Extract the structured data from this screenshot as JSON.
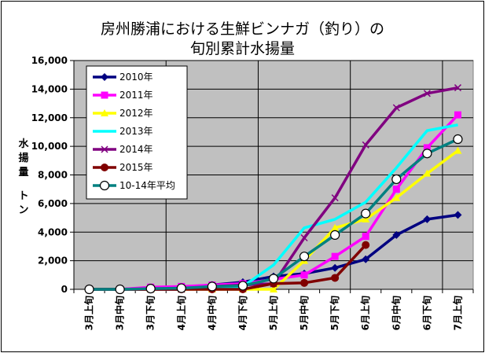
{
  "chart_data": {
    "type": "line",
    "title_line1": "房州勝浦における生鮮ビンナガ（釣り）の",
    "title_line2": "旬別累計水揚量",
    "ylabel_chars": [
      "水",
      "揚",
      "量",
      "ト",
      "ン"
    ],
    "ylim": [
      0,
      16000
    ],
    "yticks": [
      "0",
      "2,000",
      "4,000",
      "6,000",
      "8,000",
      "10,000",
      "12,000",
      "14,000",
      "16,000"
    ],
    "categories": [
      "3月上旬",
      "3月中旬",
      "3月下旬",
      "4月上旬",
      "4月中旬",
      "4月下旬",
      "5月上旬",
      "5月中旬",
      "5月下旬",
      "6月上旬",
      "6月中旬",
      "6月下旬",
      "7月上旬"
    ],
    "grid": true,
    "legend_position": "top-left",
    "series": [
      {
        "name": "2010年",
        "color": "#000080",
        "marker": "diamond",
        "values": [
          0,
          0,
          100,
          150,
          300,
          500,
          900,
          1100,
          1500,
          2100,
          3800,
          4900,
          5200
        ]
      },
      {
        "name": "2011年",
        "color": "#ff00ff",
        "marker": "square",
        "values": [
          0,
          0,
          150,
          200,
          300,
          400,
          700,
          1000,
          2300,
          3700,
          7000,
          9900,
          12200
        ]
      },
      {
        "name": "2012年",
        "color": "#ffff00",
        "marker": "triangle",
        "values": [
          0,
          0,
          0,
          0,
          0,
          0,
          0,
          2000,
          4300,
          4900,
          6400,
          8100,
          9700
        ]
      },
      {
        "name": "2013年",
        "color": "#00ffff",
        "marker": "none",
        "values": [
          0,
          0,
          0,
          0,
          100,
          200,
          1700,
          4300,
          4900,
          6100,
          8500,
          11100,
          11500
        ]
      },
      {
        "name": "2014年",
        "color": "#800080",
        "marker": "x",
        "values": [
          0,
          0,
          0,
          0,
          200,
          300,
          400,
          3600,
          6400,
          10100,
          12700,
          13700,
          14100
        ]
      },
      {
        "name": "2015年",
        "color": "#800000",
        "marker": "circle",
        "values": [
          0,
          0,
          0,
          0,
          0,
          0,
          400,
          450,
          800,
          3100,
          null,
          null,
          null
        ]
      },
      {
        "name": "10-14年平均",
        "color": "#008080",
        "marker": "open-circle",
        "values": [
          0,
          0,
          50,
          80,
          200,
          250,
          750,
          2300,
          3800,
          5300,
          7700,
          9500,
          10500
        ]
      }
    ]
  }
}
